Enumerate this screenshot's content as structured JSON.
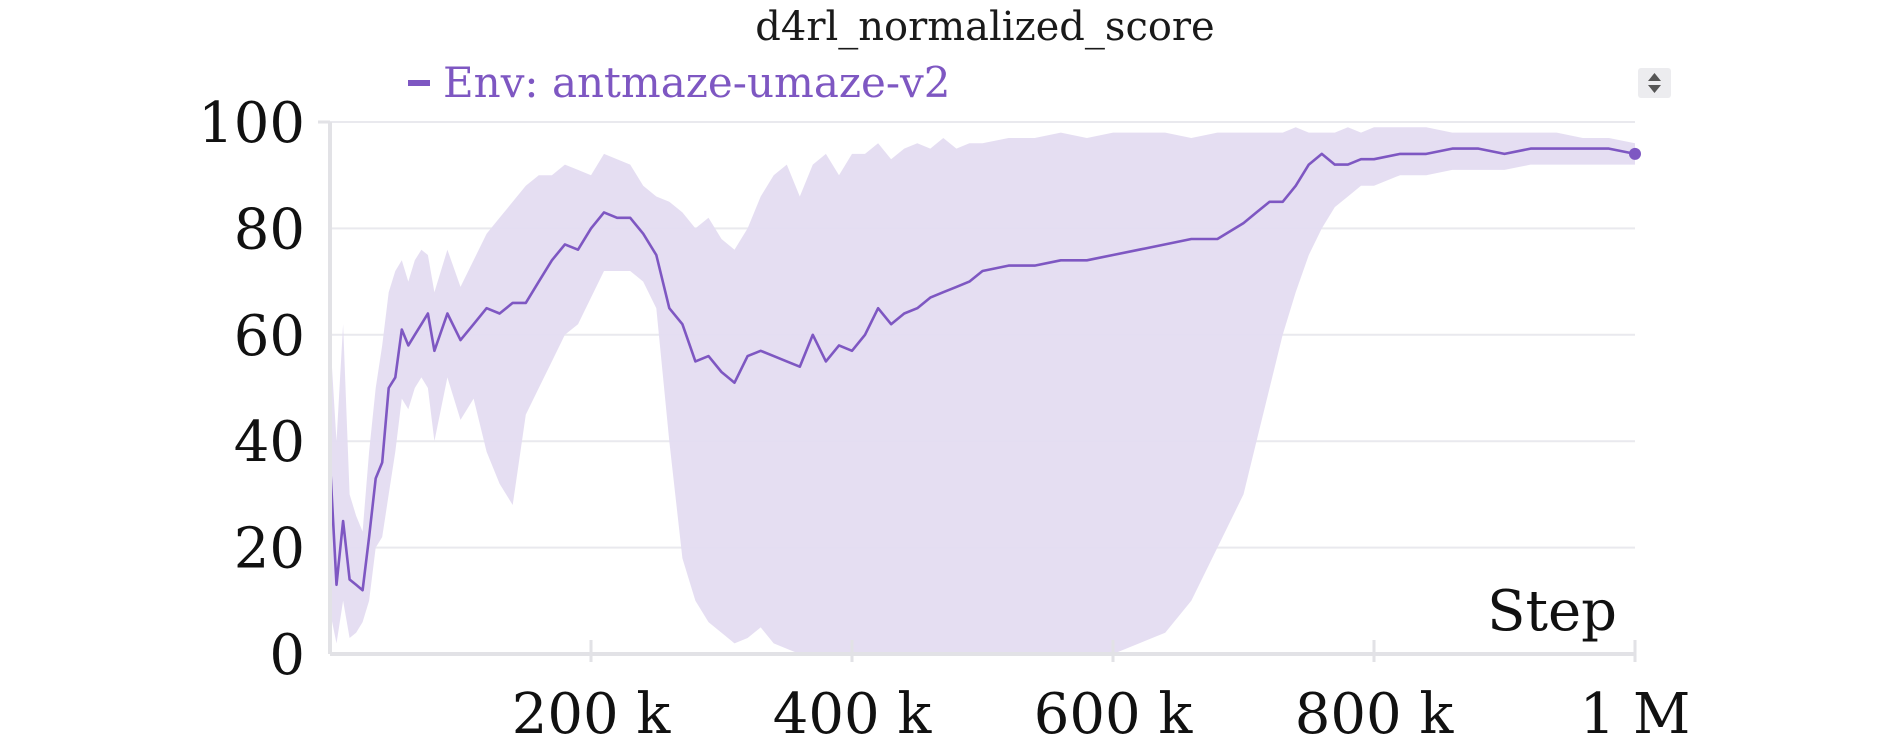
{
  "chart_data": {
    "type": "line",
    "title": "d4rl_normalized_score",
    "xlabel": "Step",
    "ylabel": "",
    "xlim": [
      0,
      1000000
    ],
    "ylim": [
      0,
      100
    ],
    "grid": true,
    "legend_position": "top-left",
    "y_ticks": [
      {
        "value": 0,
        "label": "0"
      },
      {
        "value": 20,
        "label": "20"
      },
      {
        "value": 40,
        "label": "40"
      },
      {
        "value": 60,
        "label": "60"
      },
      {
        "value": 80,
        "label": "80"
      },
      {
        "value": 100,
        "label": "100"
      }
    ],
    "x_ticks": [
      {
        "value": 200000,
        "label": "200 k"
      },
      {
        "value": 400000,
        "label": "400 k"
      },
      {
        "value": 600000,
        "label": "600 k"
      },
      {
        "value": 800000,
        "label": "800 k"
      },
      {
        "value": 1000000,
        "label": "1 M"
      }
    ],
    "colors": {
      "line": "#7e57c2",
      "band": "#e4dcf1"
    },
    "series": [
      {
        "name": "Env: antmaze-umaze-v2",
        "x": [
          0,
          5000,
          10000,
          15000,
          20000,
          25000,
          30000,
          35000,
          40000,
          45000,
          50000,
          55000,
          60000,
          65000,
          70000,
          75000,
          80000,
          90000,
          100000,
          110000,
          120000,
          130000,
          140000,
          150000,
          160000,
          170000,
          180000,
          190000,
          200000,
          210000,
          220000,
          230000,
          240000,
          250000,
          260000,
          270000,
          280000,
          290000,
          300000,
          310000,
          320000,
          330000,
          340000,
          350000,
          360000,
          370000,
          380000,
          390000,
          400000,
          410000,
          420000,
          430000,
          440000,
          450000,
          460000,
          470000,
          480000,
          490000,
          500000,
          520000,
          540000,
          560000,
          580000,
          600000,
          620000,
          640000,
          660000,
          680000,
          700000,
          710000,
          720000,
          730000,
          740000,
          750000,
          760000,
          770000,
          780000,
          790000,
          800000,
          820000,
          840000,
          860000,
          880000,
          900000,
          920000,
          940000,
          960000,
          980000,
          1000000
        ],
        "values": [
          36,
          13,
          25,
          14,
          13,
          12,
          22,
          33,
          36,
          50,
          52,
          61,
          58,
          60,
          62,
          64,
          57,
          64,
          59,
          62,
          65,
          64,
          66,
          66,
          70,
          74,
          77,
          76,
          80,
          83,
          82,
          82,
          79,
          75,
          65,
          62,
          55,
          56,
          53,
          51,
          56,
          57,
          56,
          55,
          54,
          60,
          55,
          58,
          57,
          60,
          65,
          62,
          64,
          65,
          67,
          68,
          69,
          70,
          72,
          73,
          73,
          74,
          74,
          75,
          76,
          77,
          78,
          78,
          81,
          83,
          85,
          85,
          88,
          92,
          94,
          92,
          92,
          93,
          93,
          94,
          94,
          95,
          95,
          94,
          95,
          95,
          95,
          95,
          94
        ],
        "upper": [
          60,
          40,
          62,
          30,
          26,
          23,
          38,
          50,
          58,
          68,
          72,
          74,
          70,
          74,
          76,
          75,
          68,
          76,
          69,
          74,
          79,
          82,
          85,
          88,
          90,
          90,
          92,
          91,
          90,
          94,
          93,
          92,
          88,
          86,
          85,
          83,
          80,
          82,
          78,
          76,
          80,
          86,
          90,
          92,
          86,
          92,
          94,
          90,
          94,
          94,
          96,
          93,
          95,
          96,
          95,
          97,
          95,
          96,
          96,
          97,
          97,
          98,
          97,
          98,
          98,
          98,
          97,
          98,
          98,
          98,
          98,
          98,
          99,
          98,
          98,
          98,
          99,
          98,
          99,
          99,
          99,
          98,
          98,
          98,
          98,
          98,
          97,
          97,
          96
        ],
        "lower": [
          8,
          2,
          10,
          3,
          4,
          6,
          10,
          20,
          22,
          30,
          38,
          48,
          46,
          50,
          52,
          50,
          40,
          52,
          44,
          48,
          38,
          32,
          28,
          45,
          50,
          55,
          60,
          62,
          67,
          72,
          72,
          72,
          70,
          65,
          40,
          18,
          10,
          6,
          4,
          2,
          3,
          5,
          2,
          1,
          0,
          0,
          0,
          0,
          0,
          0,
          0,
          0,
          0,
          0,
          0,
          0,
          0,
          0,
          0,
          0,
          0,
          0,
          0,
          0,
          2,
          4,
          10,
          20,
          30,
          40,
          50,
          60,
          68,
          75,
          80,
          84,
          86,
          88,
          88,
          90,
          90,
          91,
          91,
          91,
          92,
          92,
          92,
          92,
          92
        ]
      }
    ]
  }
}
